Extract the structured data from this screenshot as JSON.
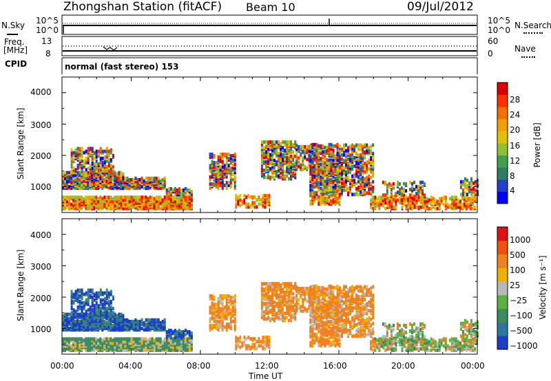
{
  "header": {
    "station": "Zhongshan Station (fitACF)",
    "beam": "Beam 10",
    "date": "09/Jul/2012"
  },
  "panels": {
    "nsky": {
      "label": "N.Sky",
      "left_ticks": [
        "10^5",
        "10^0"
      ],
      "right_label": "N.Search",
      "right_ticks": [
        "10^5",
        "10^0"
      ]
    },
    "freq": {
      "label_line1": "Freq.",
      "label_line2": "[MHz]",
      "left_ticks": [
        "13",
        "8"
      ],
      "right_label": "Nave",
      "right_ticks": [
        "60",
        "0"
      ]
    },
    "cpid": {
      "label": "CPID",
      "text": "normal (fast stereo) 153"
    }
  },
  "xaxis": {
    "label": "Time UT",
    "ticks": [
      "00:00",
      "04:00",
      "08:00",
      "12:00",
      "16:00",
      "20:00",
      "00:00"
    ]
  },
  "chart_data": [
    {
      "type": "heatmap",
      "name": "power",
      "ylabel": "Slant Range [km]",
      "yticks": [
        "4000",
        "3000",
        "2000",
        "1000"
      ],
      "ylim": [
        180,
        4500
      ],
      "xlim_hours": [
        0,
        24
      ],
      "colorbar": {
        "label": "Power [dB]",
        "ticks": [
          "28",
          "24",
          "20",
          "16",
          "12",
          "8",
          "4"
        ],
        "range": [
          0,
          30
        ],
        "colors": [
          "#0000ff",
          "#2040d0",
          "#2e7d60",
          "#40a050",
          "#90c030",
          "#e0c000",
          "#f0a000",
          "#f07000",
          "#ff3000",
          "#e00000"
        ]
      }
    },
    {
      "type": "heatmap",
      "name": "velocity",
      "ylabel": "Slant Range [km]",
      "yticks": [
        "4000",
        "3000",
        "2000",
        "1000"
      ],
      "ylim": [
        180,
        4500
      ],
      "xlim_hours": [
        0,
        24
      ],
      "colorbar": {
        "label": "Velocity [m s⁻¹]",
        "ticks": [
          "1000",
          "500",
          "100",
          "25",
          "−25",
          "−100",
          "−500",
          "−1000"
        ],
        "colors": [
          "#1a3cc8",
          "#2a78a0",
          "#3a8c60",
          "#5ab040",
          "#b8b8b8",
          "#f0b000",
          "#f08020",
          "#f05010",
          "#e01010"
        ]
      }
    }
  ]
}
